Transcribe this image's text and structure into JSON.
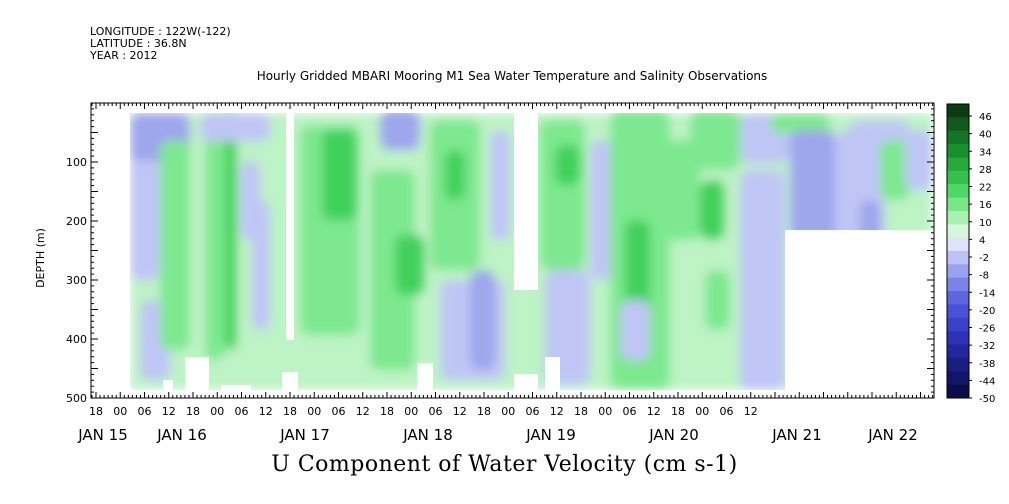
{
  "header": {
    "longitude": "LONGITUDE : 122W(-122)",
    "latitude": "LATITUDE : 36.8N",
    "year": "YEAR : 2012"
  },
  "chart_data": {
    "type": "heatmap",
    "title": "Hourly Gridded MBARI Mooring M1 Sea Water Temperature and Salinity Observations",
    "bottom_title": "U Component of Water Velocity (cm s-1)",
    "ylabel": "DEPTH (m)",
    "ylim": [
      500,
      0
    ],
    "yticks": [
      100,
      200,
      300,
      400,
      500
    ],
    "xlim": [
      "2012-01-14T15:00",
      "2012-01-22T14:00"
    ],
    "xtick_hours": [
      "18",
      "00",
      "06",
      "12",
      "18",
      "00",
      "06",
      "12",
      "18",
      "00",
      "06",
      "12",
      "18",
      "00",
      "06",
      "12",
      "18",
      "00",
      "06",
      "12",
      "18",
      "00",
      "06",
      "12",
      "18",
      "00",
      "06",
      "12"
    ],
    "xday_labels": [
      "JAN 15",
      "JAN 16",
      "JAN 17",
      "JAN 18",
      "JAN 19",
      "JAN 20",
      "JAN 21",
      "JAN 22"
    ],
    "colorbar": {
      "labels": [
        "46",
        "40",
        "34",
        "28",
        "22",
        "16",
        "10",
        "4",
        "-2",
        "-8",
        "-14",
        "-20",
        "-26",
        "-32",
        "-38",
        "-44",
        "-50"
      ],
      "colors": [
        "#0b3d14",
        "#0f5a1c",
        "#137526",
        "#1a8f2e",
        "#24a93a",
        "#35c04b",
        "#4fd865",
        "#7ae688",
        "#aaf0b4",
        "#d4f7d9",
        "#dfe2fb",
        "#bcc1f6",
        "#9aa1ef",
        "#7c83e8",
        "#5d66df",
        "#4a51d6",
        "#3a40c9",
        "#2c33b5",
        "#22279b",
        "#1a1e80",
        "#121666",
        "#0b0e4a"
      ]
    },
    "fill_colors": {
      "neg_deep": "#9ea6ec",
      "neg": "#bfc6f5",
      "pos_light": "#bdf3c5",
      "pos": "#7de88f",
      "pos_strong": "#3fd15c"
    }
  }
}
